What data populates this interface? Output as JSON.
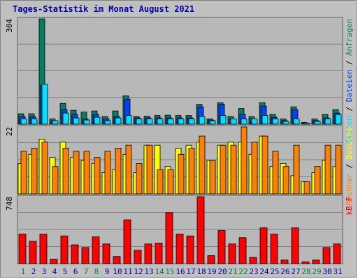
{
  "title": "Tages-Statistik im Monat August 2021",
  "colors": {
    "background": "#c0c0c0",
    "panel": "#b8b8b8",
    "grid": "#808080",
    "title": "#0000a0",
    "hits": "#008060",
    "files": "#0040ff",
    "pages": "#00e0ff",
    "visits": "#ffff00",
    "sites": "#ff8000",
    "kbytes": "#ff0000",
    "weekend_label": "#008040",
    "weekday_label": "#0000a0"
  },
  "chart_data": [
    {
      "type": "bar",
      "panel": "top",
      "ymax_label": "304",
      "ylim": [
        0,
        304
      ],
      "side_label_parts": [
        {
          "text": "Seiten",
          "color": "#00e0ff"
        },
        {
          "text": " / ",
          "color": "#000000"
        },
        {
          "text": "Dateien",
          "color": "#0040ff"
        },
        {
          "text": " / ",
          "color": "#000000"
        },
        {
          "text": "Anfragen",
          "color": "#008060"
        }
      ],
      "categories": [
        "1",
        "2",
        "3",
        "4",
        "5",
        "6",
        "7",
        "8",
        "9",
        "10",
        "11",
        "12",
        "13",
        "14",
        "15",
        "16",
        "17",
        "18",
        "19",
        "20",
        "21",
        "22",
        "23",
        "24",
        "25",
        "26",
        "27",
        "28",
        "29",
        "30",
        "31"
      ],
      "series": [
        {
          "key": "hits",
          "values": [
            30,
            30,
            304,
            15,
            60,
            40,
            35,
            38,
            22,
            38,
            82,
            22,
            23,
            25,
            26,
            25,
            25,
            57,
            15,
            62,
            22,
            45,
            22,
            62,
            28,
            15,
            50,
            5,
            15,
            28,
            42
          ]
        },
        {
          "key": "files",
          "values": [
            22,
            22,
            112,
            10,
            42,
            28,
            15,
            28,
            15,
            22,
            72,
            18,
            18,
            18,
            18,
            18,
            18,
            50,
            12,
            57,
            15,
            28,
            15,
            52,
            20,
            10,
            42,
            3,
            10,
            18,
            32
          ]
        },
        {
          "key": "pages",
          "values": [
            15,
            15,
            115,
            10,
            32,
            18,
            12,
            20,
            10,
            18,
            25,
            15,
            15,
            15,
            15,
            15,
            15,
            22,
            10,
            25,
            15,
            15,
            15,
            25,
            15,
            8,
            15,
            3,
            8,
            15,
            28
          ]
        }
      ]
    },
    {
      "type": "bar",
      "panel": "middle",
      "ymax_label": "22",
      "ylim": [
        0,
        22
      ],
      "side_label_parts": [
        {
          "text": "Rechner",
          "color": "#ff8000"
        },
        {
          "text": " / ",
          "color": "#000000"
        },
        {
          "text": "Besuche",
          "color": "#ffff00"
        }
      ],
      "categories": [
        "1",
        "2",
        "3",
        "4",
        "5",
        "6",
        "7",
        "8",
        "9",
        "10",
        "11",
        "12",
        "13",
        "14",
        "15",
        "16",
        "17",
        "18",
        "19",
        "20",
        "21",
        "22",
        "23",
        "24",
        "25",
        "26",
        "27",
        "28",
        "29",
        "30",
        "31"
      ],
      "series": [
        {
          "key": "visits",
          "values": [
            10,
            13,
            18,
            12,
            17,
            12,
            11,
            10,
            7,
            8,
            13,
            7,
            16,
            16,
            9,
            15,
            16,
            17,
            11,
            16,
            17,
            17,
            13,
            19,
            9,
            10,
            6,
            4,
            7,
            11,
            9
          ]
        },
        {
          "key": "sites",
          "values": [
            14,
            15,
            17,
            9,
            15,
            14,
            14,
            12,
            14,
            15,
            16,
            10,
            16,
            8,
            8,
            13,
            15,
            19,
            11,
            16,
            16,
            22,
            17,
            19,
            14,
            9,
            16,
            4,
            9,
            16,
            16
          ]
        }
      ]
    },
    {
      "type": "bar",
      "panel": "bottom",
      "ymax_label": "748",
      "ylim": [
        0,
        748
      ],
      "side_label_parts": [
        {
          "text": "kB F",
          "color": "#ff0000"
        }
      ],
      "categories": [
        "1",
        "2",
        "3",
        "4",
        "5",
        "6",
        "7",
        "8",
        "9",
        "10",
        "11",
        "12",
        "13",
        "14",
        "15",
        "16",
        "17",
        "18",
        "19",
        "20",
        "21",
        "22",
        "23",
        "24",
        "25",
        "26",
        "27",
        "28",
        "29",
        "30",
        "31"
      ],
      "series": [
        {
          "key": "kbytes",
          "values": [
            330,
            250,
            330,
            50,
            310,
            210,
            180,
            300,
            220,
            80,
            490,
            150,
            220,
            230,
            570,
            330,
            310,
            748,
            90,
            370,
            220,
            290,
            70,
            400,
            330,
            40,
            400,
            20,
            40,
            180,
            220
          ]
        }
      ]
    }
  ],
  "x_labels": [
    {
      "text": "1",
      "weekend": true
    },
    {
      "text": "2",
      "weekend": false
    },
    {
      "text": "3",
      "weekend": false
    },
    {
      "text": "4",
      "weekend": false
    },
    {
      "text": "5",
      "weekend": false
    },
    {
      "text": "6",
      "weekend": false
    },
    {
      "text": "7",
      "weekend": true
    },
    {
      "text": "8",
      "weekend": true
    },
    {
      "text": "9",
      "weekend": false
    },
    {
      "text": "10",
      "weekend": false
    },
    {
      "text": "11",
      "weekend": false
    },
    {
      "text": "12",
      "weekend": false
    },
    {
      "text": "13",
      "weekend": false
    },
    {
      "text": "14",
      "weekend": true
    },
    {
      "text": "15",
      "weekend": true
    },
    {
      "text": "16",
      "weekend": false
    },
    {
      "text": "17",
      "weekend": false
    },
    {
      "text": "18",
      "weekend": false
    },
    {
      "text": "19",
      "weekend": false
    },
    {
      "text": "20",
      "weekend": false
    },
    {
      "text": "21",
      "weekend": true
    },
    {
      "text": "22",
      "weekend": true
    },
    {
      "text": "23",
      "weekend": false
    },
    {
      "text": "24",
      "weekend": false
    },
    {
      "text": "25",
      "weekend": false
    },
    {
      "text": "26",
      "weekend": false
    },
    {
      "text": "27",
      "weekend": false
    },
    {
      "text": "28",
      "weekend": true
    },
    {
      "text": "29",
      "weekend": true
    },
    {
      "text": "30",
      "weekend": false
    },
    {
      "text": "31",
      "weekend": false
    }
  ]
}
